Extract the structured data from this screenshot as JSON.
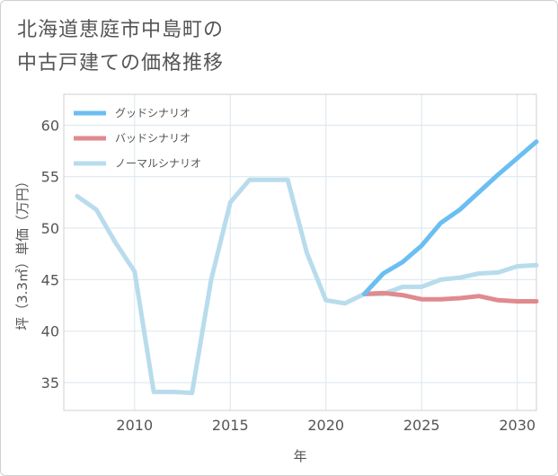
{
  "title": "北海道恵庭市中島町の\n中古戸建ての価格推移",
  "chart_data": {
    "type": "line",
    "title": "北海道恵庭市中島町の中古戸建ての価格推移",
    "xlabel": "年",
    "ylabel": "坪（3.3㎡）単価（万円）",
    "xlim": [
      2006.3,
      2031
    ],
    "ylim": [
      32.3,
      63
    ],
    "xticks": [
      2010,
      2015,
      2020,
      2025,
      2030
    ],
    "yticks": [
      35,
      40,
      45,
      50,
      55,
      60
    ],
    "grid": true,
    "legend_position": "top-left",
    "series": [
      {
        "name": "グッドシナリオ",
        "color": "#6bbef2",
        "x": [
          2022,
          2023,
          2024,
          2025,
          2026,
          2027,
          2028,
          2029,
          2030,
          2031
        ],
        "y": [
          43.6,
          45.6,
          46.7,
          48.3,
          50.5,
          51.8,
          53.5,
          55.2,
          56.8,
          58.4
        ]
      },
      {
        "name": "バッドシナリオ",
        "color": "#e08a8f",
        "x": [
          2022,
          2023,
          2024,
          2025,
          2026,
          2027,
          2028,
          2029,
          2030,
          2031
        ],
        "y": [
          43.6,
          43.7,
          43.5,
          43.1,
          43.1,
          43.2,
          43.4,
          43.0,
          42.9,
          42.9
        ]
      },
      {
        "name": "ノーマルシナリオ",
        "color": "#b8dcec",
        "x": [
          2007,
          2008,
          2009,
          2010,
          2011,
          2012,
          2013,
          2014,
          2015,
          2016,
          2017,
          2018,
          2019,
          2020,
          2021,
          2022,
          2023,
          2024,
          2025,
          2026,
          2027,
          2028,
          2029,
          2030,
          2031
        ],
        "y": [
          53.1,
          51.8,
          48.6,
          45.8,
          34.1,
          34.1,
          34.0,
          45.0,
          52.5,
          54.7,
          54.7,
          54.7,
          47.6,
          43.0,
          42.7,
          43.6,
          43.6,
          44.3,
          44.3,
          45.0,
          45.2,
          45.6,
          45.7,
          46.3,
          46.4
        ]
      }
    ]
  }
}
